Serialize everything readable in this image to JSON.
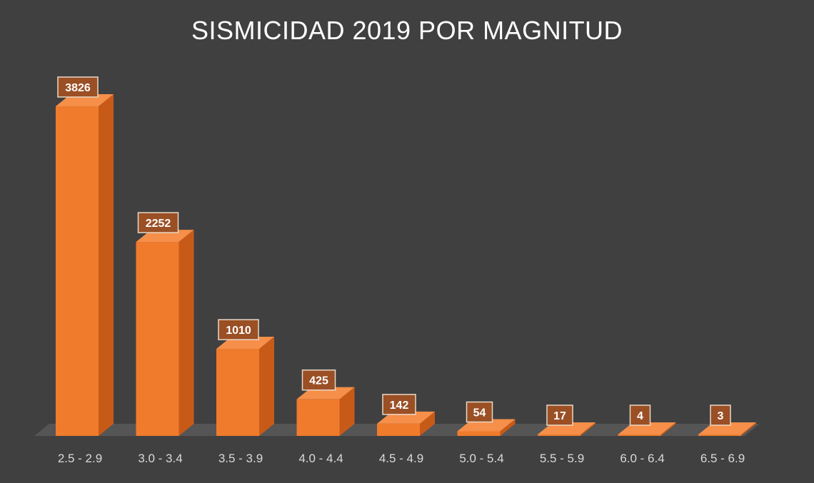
{
  "chart_data": {
    "type": "bar",
    "title": "SISMICIDAD 2019 POR MAGNITUD",
    "xlabel": "",
    "ylabel": "",
    "categories": [
      "2.5 - 2.9",
      "3.0 - 3.4",
      "3.5 - 3.9",
      "4.0 - 4.4",
      "4.5 - 4.9",
      "5.0 - 5.4",
      "5.5 - 5.9",
      "6.0 - 6.4",
      "6.5 - 6.9"
    ],
    "values": [
      3826,
      2252,
      1010,
      425,
      142,
      54,
      17,
      4,
      3
    ],
    "ylim": [
      0,
      3826
    ],
    "grid": false,
    "legend": "none",
    "style": "3d-column",
    "colors": {
      "background": "#404040",
      "bar_front": "#f07b2c",
      "bar_side": "#c85a18",
      "bar_top": "#f58f4a",
      "floor": "#555555",
      "label_box": "#9a4f24",
      "label_border": "#e8d8c8",
      "tick_text": "#d9d9d9",
      "title_text": "#ffffff"
    }
  }
}
